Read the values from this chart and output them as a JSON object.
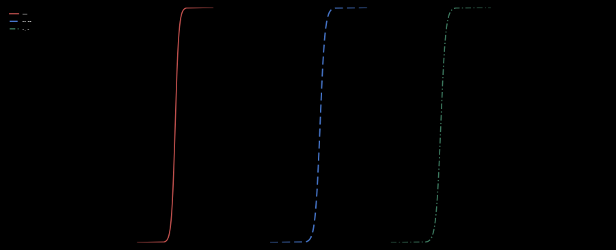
{
  "background_color": "#000000",
  "figure_facecolor": "#000000",
  "axes_facecolor": "#000000",
  "text_color": "#ffffff",
  "line1": {
    "color": "#c0504d",
    "style": "-",
    "label": " —",
    "linewidth": 1.2,
    "x_center": 0.28,
    "spread": 0.003
  },
  "line2": {
    "color": "#4472c4",
    "style": "--",
    "label": " -- --",
    "linewidth": 1.4,
    "x_center": 0.52,
    "spread": 0.004
  },
  "line3": {
    "color": "#3d7a60",
    "style": "-.",
    "label": " -. -",
    "linewidth": 1.2,
    "x_center": 0.72,
    "spread": 0.004
  },
  "xlim": [
    0.0,
    1.0
  ],
  "ylim": [
    0.0,
    1.0
  ],
  "figsize": [
    8.97,
    3.64
  ],
  "dpi": 100
}
